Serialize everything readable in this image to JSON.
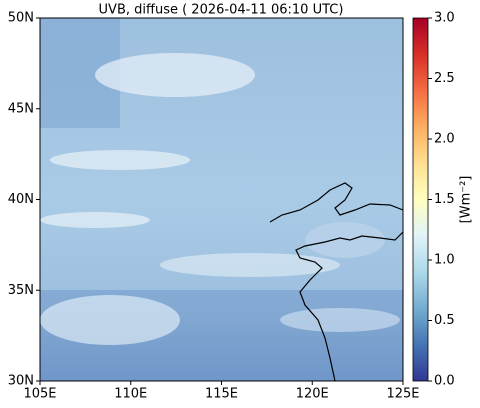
{
  "map": {
    "title": "UVB, diffuse ( 2026-04-11 06:10 UTC)",
    "xlim": [
      105,
      125
    ],
    "ylim": [
      30,
      50
    ],
    "xticks": [
      {
        "value": 105,
        "label": "105E"
      },
      {
        "value": 110,
        "label": "110E"
      },
      {
        "value": 115,
        "label": "115E"
      },
      {
        "value": 120,
        "label": "120E"
      },
      {
        "value": 125,
        "label": "125E"
      }
    ],
    "yticks": [
      {
        "value": 30,
        "label": "30N"
      },
      {
        "value": 35,
        "label": "35N"
      },
      {
        "value": 40,
        "label": "40N"
      },
      {
        "value": 45,
        "label": "45N"
      },
      {
        "value": 50,
        "label": "50N"
      }
    ],
    "colorbar": {
      "label": "[Wm⁻²]",
      "lim": [
        0,
        3
      ],
      "ticks": [
        {
          "value": 0,
          "label": "0.0"
        },
        {
          "value": 0.5,
          "label": "0.5"
        },
        {
          "value": 1,
          "label": "1.0"
        },
        {
          "value": 1.5,
          "label": "1.5"
        },
        {
          "value": 2,
          "label": "2.0"
        },
        {
          "value": 2.5,
          "label": "2.5"
        },
        {
          "value": 3,
          "label": "3.0"
        }
      ]
    }
  }
}
